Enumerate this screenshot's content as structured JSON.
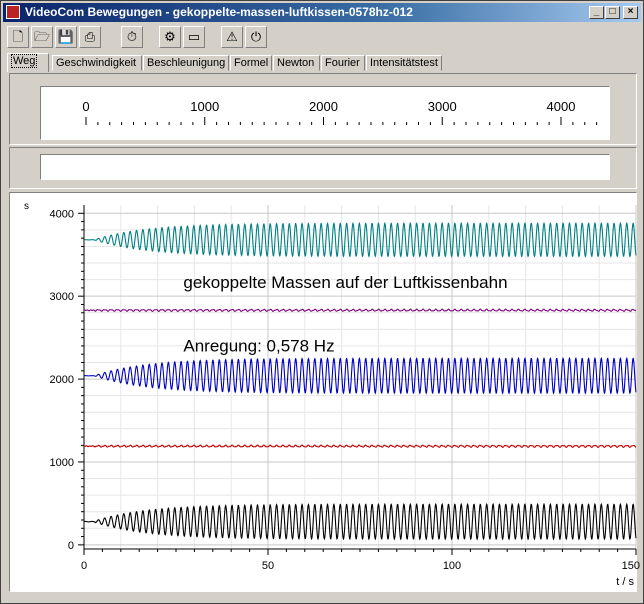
{
  "window": {
    "title": "VideoCom Bewegungen - gekoppelte-massen-luftkissen-0578hz-012"
  },
  "window_buttons": {
    "minimize": "_",
    "maximize": "□",
    "close": "×"
  },
  "toolbar": {
    "buttons": [
      {
        "name": "new-file",
        "glyph": "🗋"
      },
      {
        "name": "open-file",
        "glyph": "🗁"
      },
      {
        "name": "save-file",
        "glyph": "💾"
      },
      {
        "name": "print",
        "glyph": "⎙"
      },
      {
        "name": "timer",
        "glyph": "⏱"
      },
      {
        "name": "settings",
        "glyph": "⚙"
      },
      {
        "name": "display",
        "glyph": "▭"
      },
      {
        "name": "info",
        "glyph": "⚠"
      },
      {
        "name": "record",
        "glyph": "⏻"
      }
    ]
  },
  "tabs": [
    "Weg",
    "Geschwindigkeit",
    "Beschleunigung",
    "Formel",
    "Newton",
    "Fourier",
    "Intensitätstest"
  ],
  "active_tab": 0,
  "scale": {
    "labels": [
      "0",
      "1000",
      "2000",
      "3000",
      "4000"
    ]
  },
  "chart_data": {
    "type": "line",
    "ylabel": "s",
    "xlabel": "t / s",
    "xlim": [
      0,
      150
    ],
    "ylim": [
      -50,
      4100
    ],
    "x_ticks": [
      0,
      50,
      100,
      150
    ],
    "y_ticks": [
      0,
      1000,
      2000,
      3000,
      4000
    ],
    "grid": true,
    "annotations": [
      {
        "text": "gekoppelte Massen auf der Luftkissenbahn",
        "x": 27,
        "y": 3100
      },
      {
        "text": "Anregung: 0,578 Hz",
        "x": 27,
        "y": 2330
      }
    ],
    "series": [
      {
        "color": "#008080",
        "center": 3680,
        "amp_start": 5,
        "amp_end": 200,
        "freq_hz": 0.578
      },
      {
        "color": "#800080",
        "center": 2830,
        "amp_start": 8,
        "amp_end": 10,
        "freq_hz": 0.578
      },
      {
        "color": "#0000c0",
        "center": 2040,
        "amp_start": 5,
        "amp_end": 210,
        "freq_hz": 0.578
      },
      {
        "color": "#c00000",
        "center": 1190,
        "amp_start": 8,
        "amp_end": 10,
        "freq_hz": 0.578
      },
      {
        "color": "#000000",
        "center": 280,
        "amp_start": 10,
        "amp_end": 210,
        "freq_hz": 0.578
      }
    ]
  }
}
